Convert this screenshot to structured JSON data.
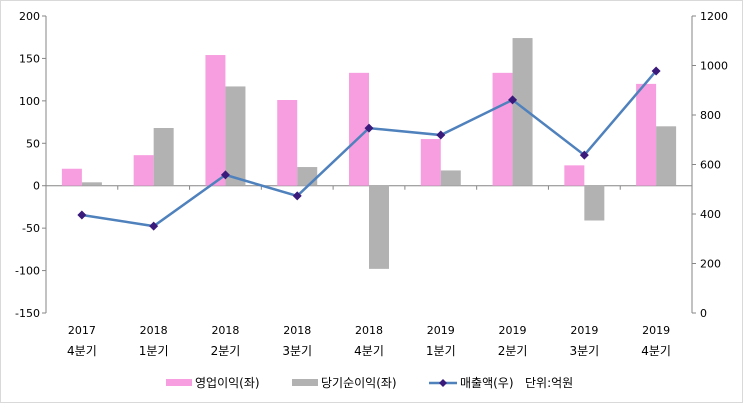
{
  "chart_data": {
    "type": "bar+line",
    "title": "",
    "unit_note": "단위:억원",
    "categories": [
      {
        "year": "2017",
        "quarter": "4분기"
      },
      {
        "year": "2018",
        "quarter": "1분기"
      },
      {
        "year": "2018",
        "quarter": "2분기"
      },
      {
        "year": "2018",
        "quarter": "3분기"
      },
      {
        "year": "2018",
        "quarter": "4분기"
      },
      {
        "year": "2019",
        "quarter": "1분기"
      },
      {
        "year": "2019",
        "quarter": "2분기"
      },
      {
        "year": "2019",
        "quarter": "3분기"
      },
      {
        "year": "2019",
        "quarter": "4분기"
      }
    ],
    "series": [
      {
        "name": "영업이익(좌)",
        "type": "bar",
        "axis": "left",
        "color": "#f79ee0",
        "values": [
          20,
          36,
          154,
          101,
          133,
          55,
          133,
          24,
          120
        ]
      },
      {
        "name": "당기순이익(좌)",
        "type": "bar",
        "axis": "left",
        "color": "#b2b2b2",
        "values": [
          4,
          68,
          117,
          22,
          -98,
          18,
          174,
          -41,
          70
        ]
      },
      {
        "name": "매출액(우)",
        "type": "line",
        "axis": "right",
        "color": "#4f81bd",
        "marker_color": "#3a1a7a",
        "values": [
          396,
          351,
          558,
          473,
          747,
          719,
          861,
          638,
          978
        ]
      }
    ],
    "left_axis": {
      "ylim": [
        -150,
        200
      ],
      "ticks": [
        "200",
        "150",
        "100",
        "50",
        "0",
        "-50",
        "-100",
        "-150"
      ],
      "tick_values": [
        200,
        150,
        100,
        50,
        0,
        -50,
        -100,
        -150
      ]
    },
    "right_axis": {
      "ylim": [
        0,
        1200
      ],
      "ticks": [
        "1200",
        "1000",
        "800",
        "600",
        "400",
        "200",
        "0"
      ],
      "tick_values": [
        1200,
        1000,
        800,
        600,
        400,
        200,
        0
      ]
    },
    "legend_position": "bottom",
    "grid": false
  }
}
